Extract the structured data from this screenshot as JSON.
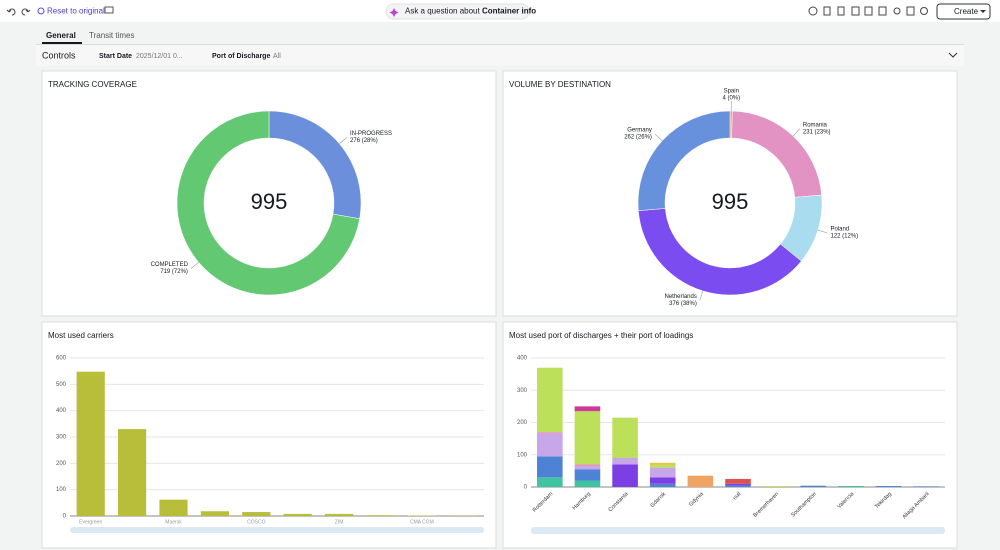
{
  "toolbar": {
    "reset": "Reset to original",
    "ask_prefix": "Ask a question about",
    "ask_subject": "Container info",
    "create": "Create"
  },
  "tabs": [
    "General",
    "Transit times"
  ],
  "controls": {
    "title": "Controls",
    "filters": [
      {
        "label": "Start Date",
        "value": "2025/12/01 0..."
      },
      {
        "label": "Port of Discharge",
        "value": "All"
      }
    ]
  },
  "charts": [
    {
      "type": "donut",
      "title": "TRACKING COVERAGE",
      "total": 995,
      "categories": [
        "IN-PROGRESS",
        "COMPLETED"
      ],
      "values": [
        276,
        719
      ],
      "value_labels": [
        "276 (28%)",
        "719 (72%)"
      ],
      "colors": [
        "#6b8fdb",
        "#62c972"
      ]
    },
    {
      "type": "donut",
      "title": "VOLUME BY DESTINATION",
      "total": 995,
      "categories": [
        "Spain",
        "Romania",
        "Poland",
        "Netherlands",
        "Germany"
      ],
      "values": [
        4,
        231,
        122,
        376,
        262
      ],
      "value_labels": [
        "4 (0%)",
        "231 (23%)",
        "122 (12%)",
        "376 (38%)",
        "262 (26%)"
      ],
      "colors": [
        "#d9b27c",
        "#e293c4",
        "#a9dcef",
        "#7b4cf0",
        "#6891dd"
      ]
    },
    {
      "type": "bar",
      "title": "Most used carriers",
      "categories": [
        "Evergreen",
        null,
        "Maersk",
        null,
        "COSCO",
        null,
        "ZIM",
        null,
        "CMA CGM",
        null
      ],
      "values": [
        548,
        330,
        62,
        18,
        15,
        8,
        8,
        3,
        2,
        1
      ],
      "color": "#b8bd3a",
      "ylim": [
        0,
        600
      ],
      "yticks": [
        0,
        100,
        200,
        300,
        400,
        500,
        600
      ],
      "grid": true
    },
    {
      "type": "stacked-bar",
      "title": "Most used port of discharges + their port of loadings",
      "categories": [
        "Rotterdam",
        "Hamburg",
        "Constanta",
        "Gdansk",
        "Gdynia",
        "null",
        "Bremerhaven",
        "Southampton",
        "Valencia",
        "Tekirdag",
        "Aliaga Ambarli"
      ],
      "series": [
        {
          "color": "#3fc3a0",
          "values": [
            30,
            20,
            0,
            0,
            0,
            0,
            0,
            0,
            3,
            0,
            0
          ]
        },
        {
          "color": "#4d82d6",
          "values": [
            65,
            35,
            0,
            10,
            0,
            5,
            0,
            4,
            0,
            3,
            2
          ]
        },
        {
          "color": "#7b3fe4",
          "values": [
            0,
            0,
            70,
            20,
            0,
            5,
            0,
            0,
            0,
            0,
            0
          ]
        },
        {
          "color": "#c7a6ea",
          "values": [
            70,
            10,
            20,
            30,
            0,
            0,
            0,
            0,
            0,
            0,
            0
          ]
        },
        {
          "color": "#e98fc6",
          "values": [
            5,
            5,
            0,
            0,
            0,
            0,
            0,
            0,
            0,
            0,
            0
          ]
        },
        {
          "color": "#bde05a",
          "values": [
            200,
            165,
            125,
            8,
            0,
            0,
            3,
            0,
            0,
            0,
            0
          ]
        },
        {
          "color": "#d0379a",
          "values": [
            0,
            15,
            0,
            0,
            0,
            0,
            0,
            0,
            0,
            0,
            0
          ]
        },
        {
          "color": "#f0a462",
          "values": [
            0,
            0,
            0,
            0,
            35,
            0,
            0,
            0,
            0,
            0,
            0
          ]
        },
        {
          "color": "#d9534f",
          "values": [
            0,
            0,
            0,
            0,
            0,
            15,
            0,
            0,
            0,
            0,
            0
          ]
        },
        {
          "color": "#e4c64a",
          "values": [
            0,
            0,
            0,
            7,
            0,
            0,
            0,
            0,
            0,
            0,
            0
          ]
        }
      ],
      "ylim": [
        0,
        400
      ],
      "yticks": [
        0,
        100,
        200,
        300,
        400
      ],
      "grid": true
    }
  ]
}
